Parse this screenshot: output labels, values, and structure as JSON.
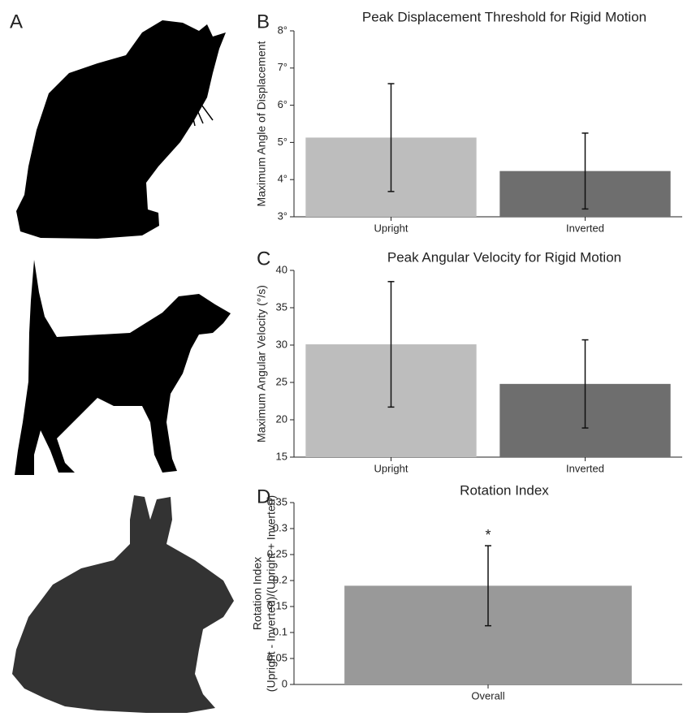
{
  "panel_labels": [
    "A",
    "B",
    "C",
    "D"
  ],
  "chart_data": [
    {
      "type": "bar",
      "title": "Peak Displacement Threshold for Rigid Motion",
      "ylabel": [
        "Maximum Angle of Displacement"
      ],
      "categories": [
        "Upright",
        "Inverted"
      ],
      "values": [
        5.13,
        4.23
      ],
      "errors": [
        1.45,
        1.02
      ],
      "colors": [
        "#bdbdbd",
        "#6e6e6e"
      ],
      "ylim": [
        3,
        8
      ],
      "yticks": [
        {
          "value": 3,
          "label": "3°"
        },
        {
          "value": 4,
          "label": "4°"
        },
        {
          "value": 5,
          "label": "5°"
        },
        {
          "value": 6,
          "label": "6°"
        },
        {
          "value": 7,
          "label": "7°"
        },
        {
          "value": 8,
          "label": "8°"
        }
      ]
    },
    {
      "type": "bar",
      "title": "Peak Angular Velocity for Rigid Motion",
      "ylabel": [
        "Maximum Angular Velocity (°/s)"
      ],
      "categories": [
        "Upright",
        "Inverted"
      ],
      "values": [
        30.1,
        24.8
      ],
      "errors": [
        8.4,
        5.9
      ],
      "colors": [
        "#bdbdbd",
        "#6e6e6e"
      ],
      "ylim": [
        15,
        40
      ],
      "yticks": [
        15,
        20,
        25,
        30,
        35,
        40
      ]
    },
    {
      "type": "bar",
      "title": "Rotation Index",
      "ylabel": [
        "Rotation Index",
        "(Upright - Inverted)/(Upright + Inverted)"
      ],
      "categories": [
        "Overall"
      ],
      "values": [
        0.19
      ],
      "errors": [
        0.077
      ],
      "colors": [
        "#999999"
      ],
      "annotations": [
        "*"
      ],
      "ylim": [
        0,
        0.35
      ],
      "yticks": [
        0,
        0.05,
        0.1,
        0.15,
        0.2,
        0.25,
        0.3,
        0.35
      ]
    }
  ]
}
